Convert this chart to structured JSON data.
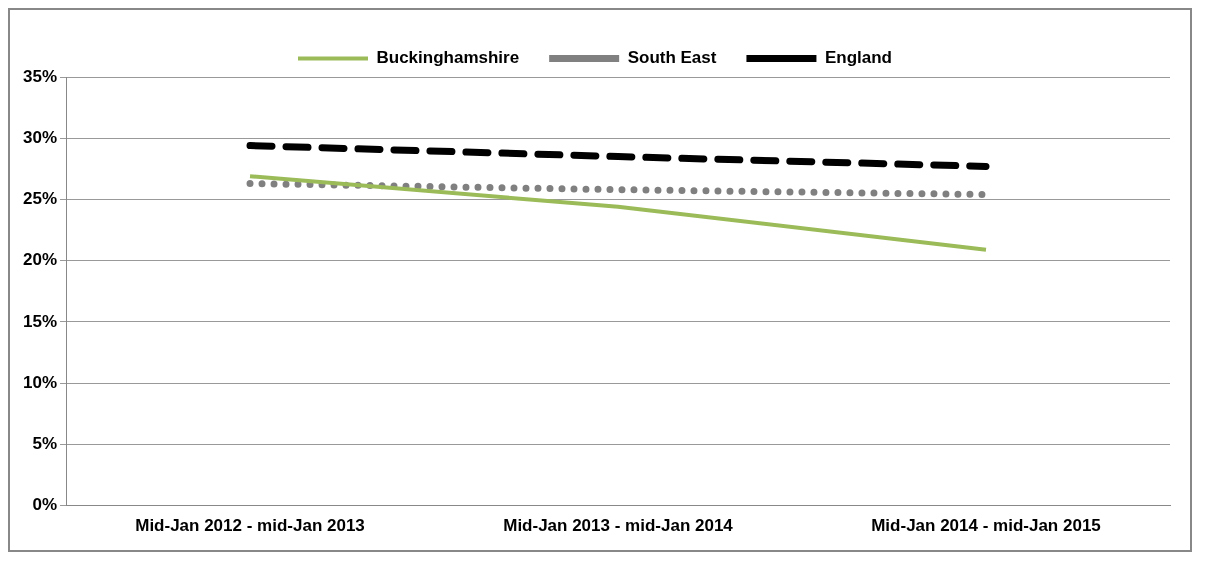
{
  "chart_data": {
    "type": "line",
    "categories": [
      "Mid-Jan 2012 - mid-Jan 2013",
      "Mid-Jan 2013 - mid-Jan 2014",
      "Mid-Jan 2014 - mid-Jan 2015"
    ],
    "series": [
      {
        "name": "Buckinghamshire",
        "color": "#9bbb59",
        "line_style": "solid",
        "values": [
          26.9,
          24.4,
          20.9
        ]
      },
      {
        "name": "South East",
        "color": "#808080",
        "line_style": "dotted",
        "values": [
          26.3,
          25.8,
          25.4
        ]
      },
      {
        "name": "England",
        "color": "#000000",
        "line_style": "dashed",
        "values": [
          29.4,
          28.5,
          27.7
        ]
      }
    ],
    "ylim": [
      0,
      35
    ],
    "yticks": [
      {
        "value": 0,
        "label": "0%"
      },
      {
        "value": 5,
        "label": "5%"
      },
      {
        "value": 10,
        "label": "10%"
      },
      {
        "value": 15,
        "label": "15%"
      },
      {
        "value": 20,
        "label": "20%"
      },
      {
        "value": 25,
        "label": "25%"
      },
      {
        "value": 30,
        "label": "30%"
      },
      {
        "value": 35,
        "label": "35%"
      }
    ],
    "grid": "y",
    "legend": "top",
    "marker": "none"
  }
}
